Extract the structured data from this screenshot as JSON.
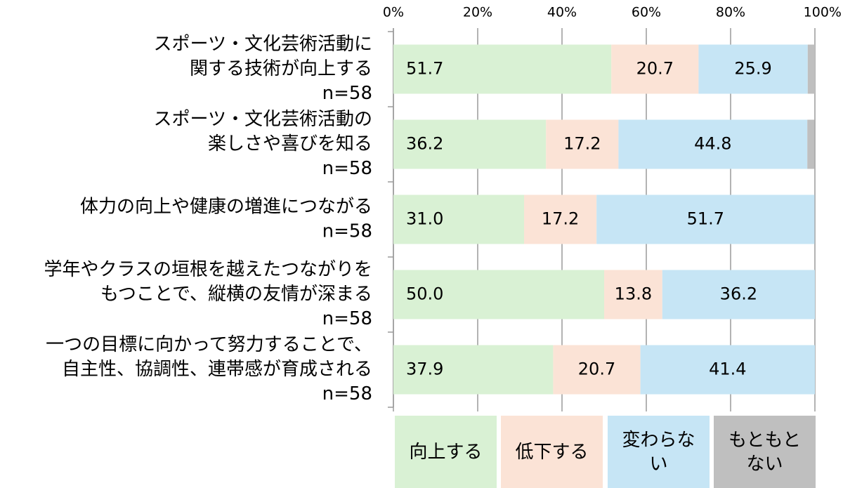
{
  "chart_data": {
    "type": "stacked-bar-horizontal",
    "categories": [
      [
        "スポーツ・文化芸術活動に",
        "関する技術が向上する",
        "n=58"
      ],
      [
        "スポーツ・文化芸術活動の",
        "楽しさや喜びを知る",
        "n=58"
      ],
      [
        "体力の向上や健康の増進につながる",
        "n=58"
      ],
      [
        "学年やクラスの垣根を越えたつながりを",
        "もつことで、縦横の友情が深まる",
        "n=58"
      ],
      [
        "一つの目標に向かって努力することで、",
        "自主性、協調性、連帯感が育成される",
        "n=58"
      ]
    ],
    "series": [
      {
        "name": "向上する",
        "color": "#d9f1d4",
        "values": [
          51.7,
          36.2,
          31.0,
          50.0,
          37.9
        ],
        "value_labels": [
          "51.7",
          "36.2",
          "31.0",
          "50.0",
          "37.9"
        ]
      },
      {
        "name": "低下する",
        "color": "#fbe3d6",
        "values": [
          20.7,
          17.2,
          17.2,
          13.8,
          20.7
        ],
        "value_labels": [
          "20.7",
          "17.2",
          "17.2",
          "13.8",
          "20.7"
        ]
      },
      {
        "name": "変わらない",
        "color": "#c6e5f5",
        "values": [
          25.9,
          44.8,
          51.7,
          36.2,
          41.4
        ],
        "value_labels": [
          "25.9",
          "44.8",
          "51.7",
          "36.2",
          "41.4"
        ]
      },
      {
        "name": "もともとない",
        "color": "#bfbfbf",
        "values": [
          1.7,
          1.7,
          0,
          0,
          0
        ]
      }
    ],
    "xlim": [
      0,
      100
    ],
    "xticks": [
      {
        "value": 0,
        "label": "0%"
      },
      {
        "value": 20,
        "label": "20%"
      },
      {
        "value": 40,
        "label": "40%"
      },
      {
        "value": 60,
        "label": "60%"
      },
      {
        "value": 80,
        "label": "80%"
      },
      {
        "value": 100,
        "label": "100%"
      }
    ],
    "grid": true
  }
}
